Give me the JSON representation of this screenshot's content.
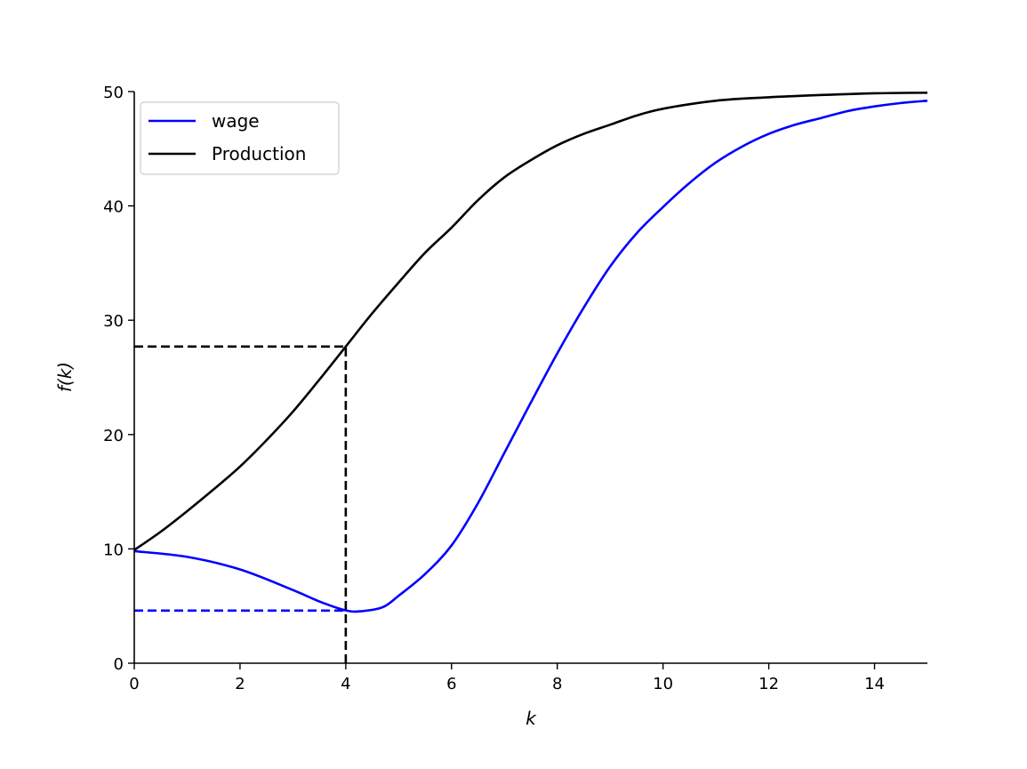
{
  "chart_data": {
    "type": "line",
    "title": "",
    "xlabel": "k",
    "ylabel": "f(k)",
    "xlim": [
      0,
      15
    ],
    "ylim": [
      0,
      50
    ],
    "grid": false,
    "legend_position": "upper left",
    "x_ticks": [
      0,
      2,
      4,
      6,
      8,
      10,
      12,
      14
    ],
    "y_ticks": [
      0,
      10,
      20,
      30,
      40,
      50
    ],
    "series": [
      {
        "name": "wage",
        "color": "#0000ff",
        "style": "solid",
        "x": [
          0,
          1,
          2,
          3,
          3.5,
          4,
          4.3,
          4.7,
          5,
          5.5,
          6,
          6.5,
          7,
          7.5,
          8,
          8.5,
          9,
          9.5,
          10,
          10.5,
          11,
          11.5,
          12,
          12.5,
          13,
          13.5,
          14,
          14.5,
          15
        ],
        "values": [
          9.8,
          9.3,
          8.2,
          6.4,
          5.4,
          4.62,
          4.55,
          4.9,
          5.9,
          7.8,
          10.3,
          14.0,
          18.4,
          22.8,
          27.1,
          31.1,
          34.7,
          37.6,
          39.9,
          42.0,
          43.8,
          45.2,
          46.3,
          47.1,
          47.7,
          48.3,
          48.7,
          49.0,
          49.2
        ]
      },
      {
        "name": "Production",
        "color": "#000000",
        "style": "solid",
        "x": [
          0,
          0.5,
          1,
          1.5,
          2,
          2.5,
          3,
          3.5,
          4,
          4.5,
          5,
          5.5,
          6,
          6.5,
          7,
          7.5,
          8,
          8.5,
          9,
          9.5,
          10,
          11,
          12,
          13,
          14,
          15
        ],
        "values": [
          9.9,
          11.5,
          13.3,
          15.2,
          17.2,
          19.5,
          22.0,
          24.8,
          27.7,
          30.6,
          33.3,
          35.9,
          38.1,
          40.5,
          42.5,
          44.0,
          45.3,
          46.3,
          47.1,
          47.9,
          48.5,
          49.2,
          49.5,
          49.7,
          49.85,
          49.9
        ]
      }
    ],
    "annotations": [
      {
        "name": "production-at-k4-horizontal",
        "type": "dashed-hline",
        "color": "#000000",
        "x": [
          0,
          4
        ],
        "y": 27.7
      },
      {
        "name": "k4-vertical",
        "type": "dashed-vline",
        "color": "#000000",
        "x": 4,
        "y": [
          0,
          27.7
        ]
      },
      {
        "name": "wage-at-k4-horizontal",
        "type": "dashed-hline",
        "color": "#0000ff",
        "x": [
          0,
          4
        ],
        "y": 4.6
      }
    ]
  },
  "legend": {
    "items": [
      {
        "label": "wage",
        "color": "#0000ff"
      },
      {
        "label": "Production",
        "color": "#000000"
      }
    ]
  },
  "axes": {
    "xlabel": "k",
    "ylabel": "f(k)"
  }
}
